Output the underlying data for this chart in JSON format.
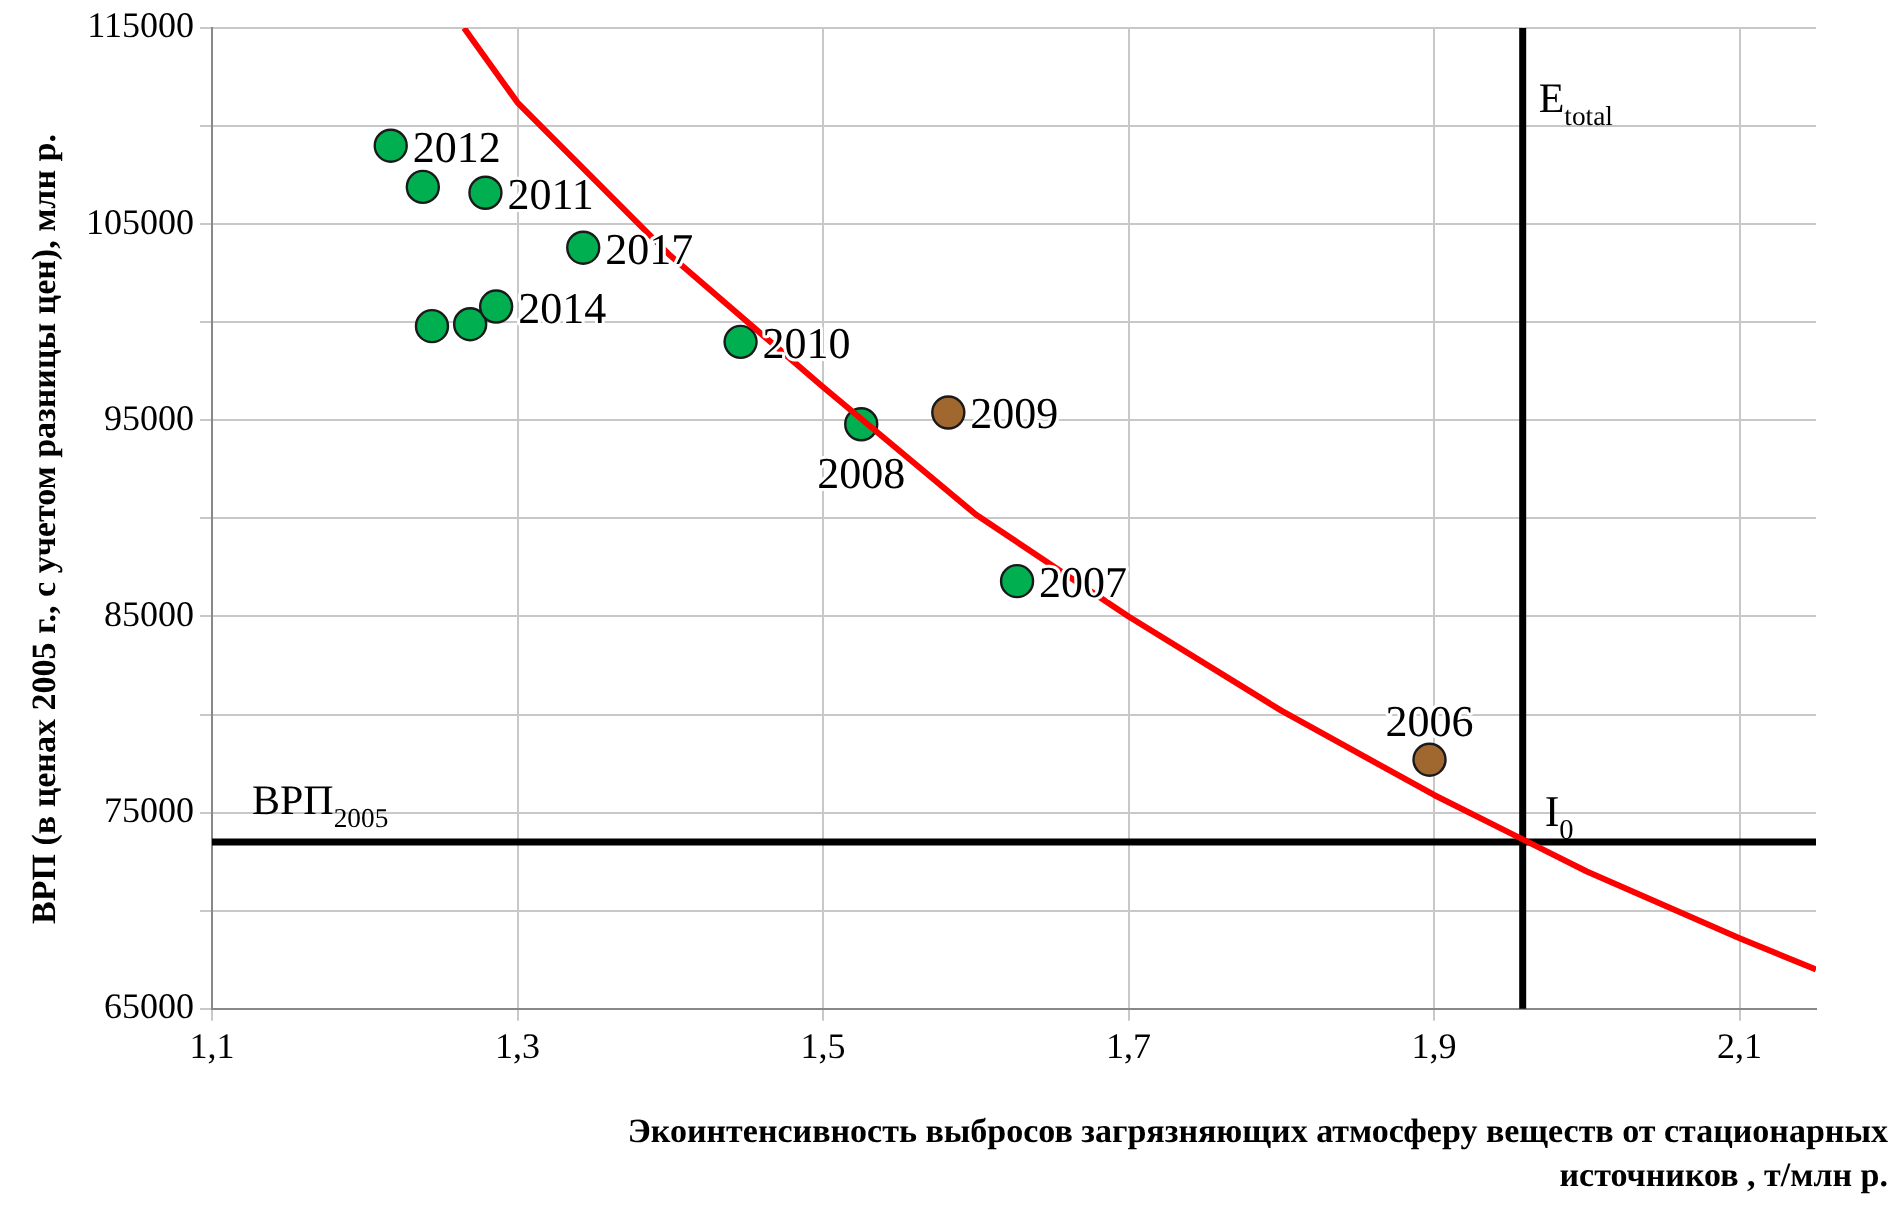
{
  "chart_data": {
    "type": "scatter",
    "xlabel": "Экоинтенсивность выбросов загрязняющих атмосферу веществ от стационарных источников ,  т/млн р.",
    "ylabel": "ВРП (в ценах 2005 г., с учетом разницы цен), млн р.",
    "xlim": [
      1.1,
      2.15
    ],
    "xticks": [
      {
        "value": 1.1,
        "label": "1,1"
      },
      {
        "value": 1.3,
        "label": "1,3"
      },
      {
        "value": 1.5,
        "label": "1,5"
      },
      {
        "value": 1.7,
        "label": "1,7"
      },
      {
        "value": 1.9,
        "label": "1,9"
      },
      {
        "value": 2.1,
        "label": "2,1"
      }
    ],
    "ylim": [
      65000,
      115000
    ],
    "yticks": [
      65000,
      {
        "value": 70000,
        "label": null
      },
      75000,
      {
        "value": 80000,
        "label": null
      },
      85000,
      {
        "value": 90000,
        "label": null
      },
      95000,
      {
        "value": 100000,
        "label": null
      },
      105000,
      {
        "value": 110000,
        "label": null
      },
      115000
    ],
    "grid": true,
    "legend": false,
    "marker": "circle",
    "series": [
      {
        "color": "#00b050",
        "x": [
          1.217,
          1.238,
          1.279,
          1.343,
          1.244,
          1.269,
          1.286,
          1.446,
          1.525,
          1.627
        ],
        "values": [
          109000,
          106900,
          106600,
          103800,
          99800,
          99900,
          100800,
          99000,
          94800,
          86800
        ]
      },
      {
        "color": "#a0682f",
        "x": [
          1.582,
          1.897
        ],
        "values": [
          95400,
          77700
        ]
      },
      {
        "type": "line",
        "color": "#ff0000",
        "marker": "none",
        "x": [
          1.265,
          1.3,
          1.4,
          1.5,
          1.6,
          1.7,
          1.8,
          1.9,
          2.0,
          2.1,
          2.15
        ],
        "values": [
          115000,
          111200,
          103400,
          96700,
          90200,
          85000,
          80200,
          75900,
          72000,
          68600,
          67000
        ]
      }
    ],
    "ref_lines": [
      {
        "axis": "x",
        "value": 1.958,
        "label": "E$_{total}$",
        "color": "#000000"
      },
      {
        "axis": "y",
        "value": 73500,
        "label": "ВРП$_{2005}$",
        "color": "#000000"
      }
    ],
    "annotations": [
      {
        "text": "I$_{0}$",
        "x": 1.958,
        "y": 73500
      },
      {
        "text": "2012",
        "x": 1.217,
        "y": 109000
      },
      {
        "text": "2011",
        "x": 1.279,
        "y": 106600
      },
      {
        "text": "2017",
        "x": 1.343,
        "y": 103800
      },
      {
        "text": "2014",
        "x": 1.286,
        "y": 100800
      },
      {
        "text": "2010",
        "x": 1.446,
        "y": 99000
      },
      {
        "text": "2008",
        "x": 1.525,
        "y": 94800
      },
      {
        "text": "2009",
        "x": 1.582,
        "y": 95400
      },
      {
        "text": "2007",
        "x": 1.627,
        "y": 86800
      },
      {
        "text": "2006",
        "x": 1.897,
        "y": 77700
      }
    ]
  }
}
